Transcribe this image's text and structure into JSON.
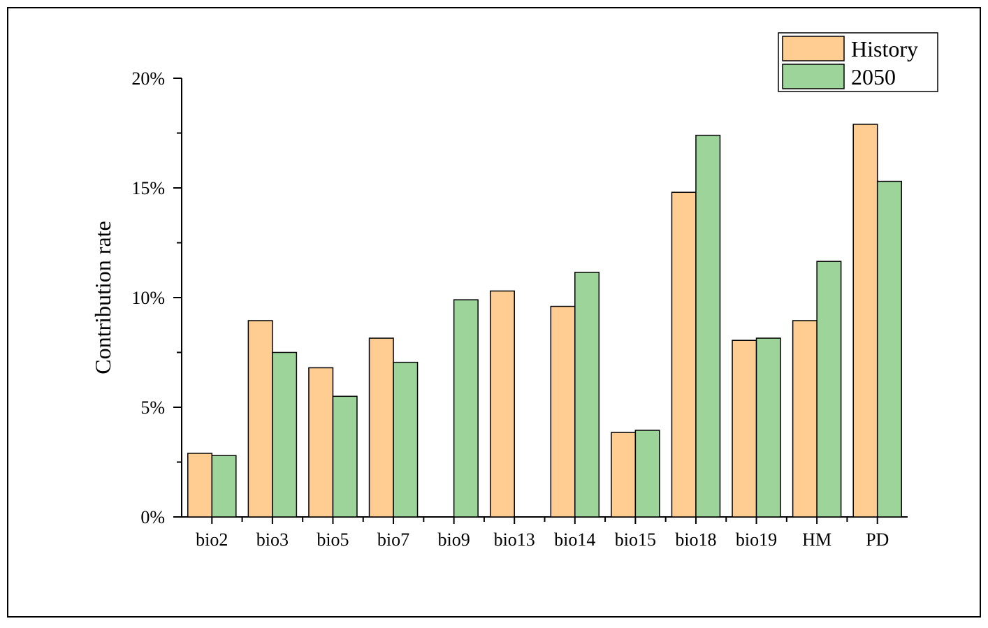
{
  "chart_data": {
    "type": "bar",
    "title": "",
    "xlabel": "",
    "ylabel": "Contribution rate",
    "ylim": [
      0,
      20
    ],
    "yticks": [
      0,
      5,
      10,
      15,
      20
    ],
    "ytick_labels": [
      "0%",
      "5%",
      "10%",
      "15%",
      "20%"
    ],
    "y_unit": "%",
    "grid": false,
    "legend_position": "top-right",
    "categories": [
      "bio2",
      "bio3",
      "bio5",
      "bio7",
      "bio9",
      "bio13",
      "bio14",
      "bio15",
      "bio18",
      "bio19",
      "HM",
      "PD"
    ],
    "series": [
      {
        "name": "History",
        "color": "#FFCC92",
        "values": [
          2.9,
          8.95,
          6.8,
          8.15,
          0,
          10.3,
          9.6,
          3.85,
          14.8,
          8.05,
          8.95,
          17.9
        ]
      },
      {
        "name": "2050",
        "color": "#9DD49A",
        "values": [
          2.8,
          7.5,
          5.5,
          7.05,
          9.9,
          0,
          11.15,
          3.95,
          17.4,
          8.15,
          11.65,
          15.3
        ]
      }
    ]
  }
}
